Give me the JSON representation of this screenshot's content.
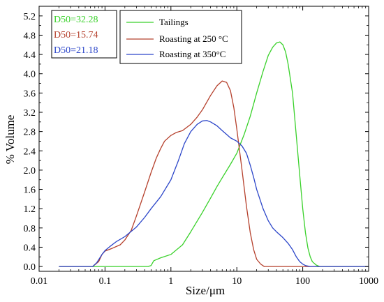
{
  "chart_data": {
    "type": "line",
    "xlabel": "Size/μm",
    "ylabel": "% Volume",
    "xscale": "log",
    "xlim": [
      0.01,
      1000
    ],
    "ylim": [
      -0.1,
      5.4
    ],
    "xticks": [
      {
        "value": 0.01,
        "label": "0.01"
      },
      {
        "value": 0.1,
        "label": "0.1"
      },
      {
        "value": 1,
        "label": "1"
      },
      {
        "value": 10,
        "label": "10"
      },
      {
        "value": 100,
        "label": "100"
      },
      {
        "value": 1000,
        "label": "1000"
      }
    ],
    "yticks": [
      "0.0",
      "0.4",
      "0.8",
      "1.2",
      "1.6",
      "2.0",
      "2.4",
      "2.8",
      "3.2",
      "3.6",
      "4.0",
      "4.4",
      "4.8",
      "5.2"
    ],
    "grid": false,
    "legend_position": "top-center",
    "annotations": [
      {
        "text": "D50=32.28",
        "color": "#39d12a"
      },
      {
        "text": "D50=15.74",
        "color": "#b5402c"
      },
      {
        "text": "D50=21.18",
        "color": "#2c46c9"
      }
    ],
    "series": [
      {
        "name": "Tailings",
        "color": "#39d12a",
        "points": [
          [
            0.02,
            0.0
          ],
          [
            0.45,
            0.0
          ],
          [
            0.5,
            0.02
          ],
          [
            0.55,
            0.12
          ],
          [
            0.7,
            0.18
          ],
          [
            1.0,
            0.25
          ],
          [
            1.5,
            0.45
          ],
          [
            2.0,
            0.72
          ],
          [
            3.0,
            1.12
          ],
          [
            4.0,
            1.42
          ],
          [
            5.0,
            1.66
          ],
          [
            6.0,
            1.84
          ],
          [
            8.0,
            2.12
          ],
          [
            10.0,
            2.35
          ],
          [
            13.0,
            2.75
          ],
          [
            16.0,
            3.12
          ],
          [
            20.0,
            3.6
          ],
          [
            25.0,
            4.05
          ],
          [
            30.0,
            4.38
          ],
          [
            35.0,
            4.55
          ],
          [
            40.0,
            4.64
          ],
          [
            45.0,
            4.66
          ],
          [
            50.0,
            4.6
          ],
          [
            55.0,
            4.45
          ],
          [
            60.0,
            4.2
          ],
          [
            70.0,
            3.6
          ],
          [
            80.0,
            2.7
          ],
          [
            90.0,
            1.9
          ],
          [
            100.0,
            1.2
          ],
          [
            110.0,
            0.7
          ],
          [
            120.0,
            0.38
          ],
          [
            130.0,
            0.2
          ],
          [
            140.0,
            0.1
          ],
          [
            160.0,
            0.03
          ],
          [
            180.0,
            0.0
          ],
          [
            1000.0,
            0.0
          ]
        ]
      },
      {
        "name": "Roasting at 250 °C",
        "color": "#b5402c",
        "points": [
          [
            0.02,
            0.0
          ],
          [
            0.065,
            0.0
          ],
          [
            0.08,
            0.1
          ],
          [
            0.09,
            0.25
          ],
          [
            0.1,
            0.32
          ],
          [
            0.13,
            0.38
          ],
          [
            0.17,
            0.45
          ],
          [
            0.2,
            0.55
          ],
          [
            0.25,
            0.75
          ],
          [
            0.3,
            1.05
          ],
          [
            0.4,
            1.55
          ],
          [
            0.5,
            1.95
          ],
          [
            0.6,
            2.25
          ],
          [
            0.7,
            2.45
          ],
          [
            0.8,
            2.6
          ],
          [
            1.0,
            2.72
          ],
          [
            1.2,
            2.78
          ],
          [
            1.5,
            2.82
          ],
          [
            2.0,
            2.95
          ],
          [
            2.5,
            3.1
          ],
          [
            3.0,
            3.25
          ],
          [
            4.0,
            3.55
          ],
          [
            5.0,
            3.75
          ],
          [
            6.0,
            3.85
          ],
          [
            7.0,
            3.82
          ],
          [
            8.0,
            3.65
          ],
          [
            9.0,
            3.3
          ],
          [
            10.0,
            2.85
          ],
          [
            12.0,
            2.0
          ],
          [
            14.0,
            1.25
          ],
          [
            16.0,
            0.7
          ],
          [
            18.0,
            0.35
          ],
          [
            20.0,
            0.15
          ],
          [
            23.0,
            0.05
          ],
          [
            26.0,
            0.0
          ],
          [
            1000.0,
            0.0
          ]
        ]
      },
      {
        "name": "Roasting at 350°C",
        "color": "#2c46c9",
        "points": [
          [
            0.02,
            0.0
          ],
          [
            0.065,
            0.0
          ],
          [
            0.075,
            0.08
          ],
          [
            0.09,
            0.25
          ],
          [
            0.1,
            0.33
          ],
          [
            0.12,
            0.42
          ],
          [
            0.15,
            0.52
          ],
          [
            0.2,
            0.62
          ],
          [
            0.3,
            0.82
          ],
          [
            0.4,
            1.02
          ],
          [
            0.5,
            1.2
          ],
          [
            0.7,
            1.45
          ],
          [
            1.0,
            1.8
          ],
          [
            1.3,
            2.2
          ],
          [
            1.6,
            2.55
          ],
          [
            2.0,
            2.8
          ],
          [
            2.5,
            2.95
          ],
          [
            3.0,
            3.02
          ],
          [
            3.5,
            3.03
          ],
          [
            4.0,
            3.0
          ],
          [
            5.0,
            2.92
          ],
          [
            6.0,
            2.82
          ],
          [
            7.0,
            2.74
          ],
          [
            8.0,
            2.67
          ],
          [
            10.0,
            2.6
          ],
          [
            12.0,
            2.5
          ],
          [
            14.0,
            2.35
          ],
          [
            16.0,
            2.1
          ],
          [
            18.0,
            1.85
          ],
          [
            20.0,
            1.6
          ],
          [
            25.0,
            1.2
          ],
          [
            30.0,
            0.95
          ],
          [
            35.0,
            0.8
          ],
          [
            40.0,
            0.72
          ],
          [
            50.0,
            0.6
          ],
          [
            60.0,
            0.48
          ],
          [
            70.0,
            0.35
          ],
          [
            80.0,
            0.2
          ],
          [
            90.0,
            0.1
          ],
          [
            100.0,
            0.05
          ],
          [
            110.0,
            0.02
          ],
          [
            130.0,
            0.0
          ],
          [
            1000.0,
            0.0
          ]
        ]
      }
    ]
  }
}
